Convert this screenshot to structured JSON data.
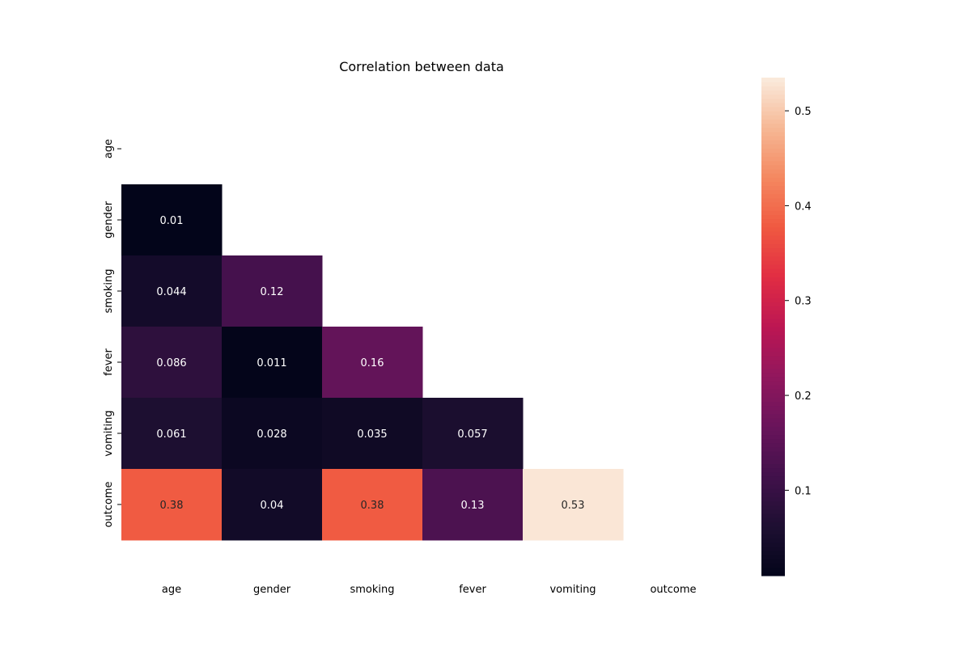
{
  "chart_data": {
    "type": "heatmap",
    "title": "Correlation between data",
    "xlabel": "",
    "ylabel": "",
    "rows": [
      "age",
      "gender",
      "smoking",
      "fever",
      "vomiting",
      "outcome"
    ],
    "cols": [
      "age",
      "gender",
      "smoking",
      "fever",
      "vomiting",
      "outcome"
    ],
    "mask": "upper-triangle-including-diagonal",
    "values": [
      [
        null,
        null,
        null,
        null,
        null,
        null
      ],
      [
        0.01,
        null,
        null,
        null,
        null,
        null
      ],
      [
        0.044,
        0.12,
        null,
        null,
        null,
        null
      ],
      [
        0.086,
        0.011,
        0.16,
        null,
        null,
        null
      ],
      [
        0.061,
        0.028,
        0.035,
        0.057,
        null,
        null
      ],
      [
        0.38,
        0.04,
        0.38,
        0.13,
        0.53,
        null
      ]
    ],
    "labels": [
      [
        null,
        null,
        null,
        null,
        null,
        null
      ],
      [
        "0.01",
        null,
        null,
        null,
        null,
        null
      ],
      [
        "0.044",
        "0.12",
        null,
        null,
        null,
        null
      ],
      [
        "0.086",
        "0.011",
        "0.16",
        null,
        null,
        null
      ],
      [
        "0.061",
        "0.028",
        "0.035",
        "0.057",
        null,
        null
      ],
      [
        "0.38",
        "0.04",
        "0.38",
        "0.13",
        "0.53",
        null
      ]
    ],
    "colormap": "rocket",
    "colorbar": {
      "min": 0.01,
      "max": 0.535,
      "ticks": [
        0.1,
        0.2,
        0.3,
        0.4,
        0.5
      ],
      "tick_labels": [
        "0.1",
        "0.2",
        "0.3",
        "0.4",
        "0.5"
      ],
      "position": "right"
    },
    "colors": {
      "text_light": "#ffffff",
      "text_dark": "#262626",
      "axis": "#000000"
    }
  }
}
